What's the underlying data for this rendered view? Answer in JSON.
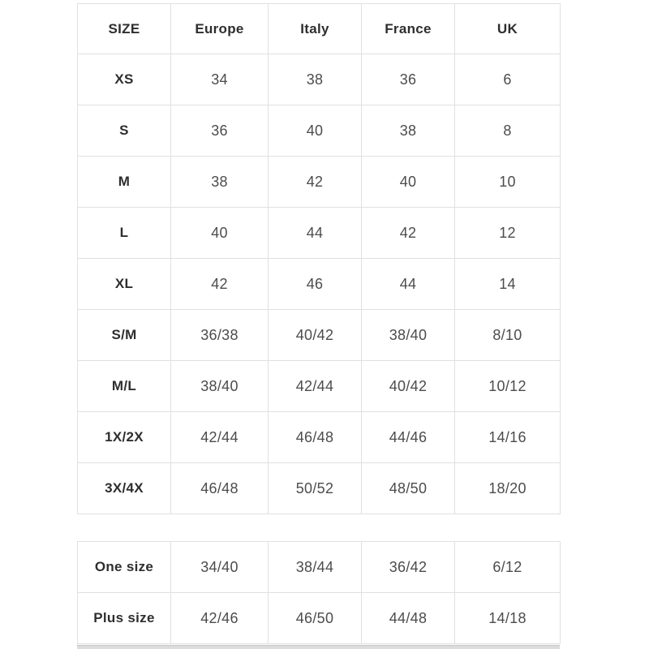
{
  "page": {
    "background_color": "#ffffff",
    "grid_border_color": "#e0e0e0",
    "header_text_color": "#2e2e2e",
    "cell_text_color": "#4c4c4c"
  },
  "size_chart": {
    "headers": [
      "SIZE",
      "Europe",
      "Italy",
      "France",
      "UK"
    ],
    "rows": [
      {
        "label": "XS",
        "cells": [
          "34",
          "38",
          "36",
          "6"
        ]
      },
      {
        "label": "S",
        "cells": [
          "36",
          "40",
          "38",
          "8"
        ]
      },
      {
        "label": "M",
        "cells": [
          "38",
          "42",
          "40",
          "10"
        ]
      },
      {
        "label": "L",
        "cells": [
          "40",
          "44",
          "42",
          "12"
        ]
      },
      {
        "label": "XL",
        "cells": [
          "42",
          "46",
          "44",
          "14"
        ]
      },
      {
        "label": "S/M",
        "cells": [
          "36/38",
          "40/42",
          "38/40",
          "8/10"
        ]
      },
      {
        "label": "M/L",
        "cells": [
          "38/40",
          "42/44",
          "40/42",
          "10/12"
        ]
      },
      {
        "label": "1X/2X",
        "cells": [
          "42/44",
          "46/48",
          "44/46",
          "14/16"
        ]
      },
      {
        "label": "3X/4X",
        "cells": [
          "46/48",
          "50/52",
          "48/50",
          "18/20"
        ]
      }
    ]
  },
  "special_sizes": {
    "rows": [
      {
        "label": "One size",
        "cells": [
          "34/40",
          "38/44",
          "36/42",
          "6/12"
        ]
      },
      {
        "label": "Plus size",
        "cells": [
          "42/46",
          "46/50",
          "44/48",
          "14/18"
        ]
      }
    ]
  }
}
